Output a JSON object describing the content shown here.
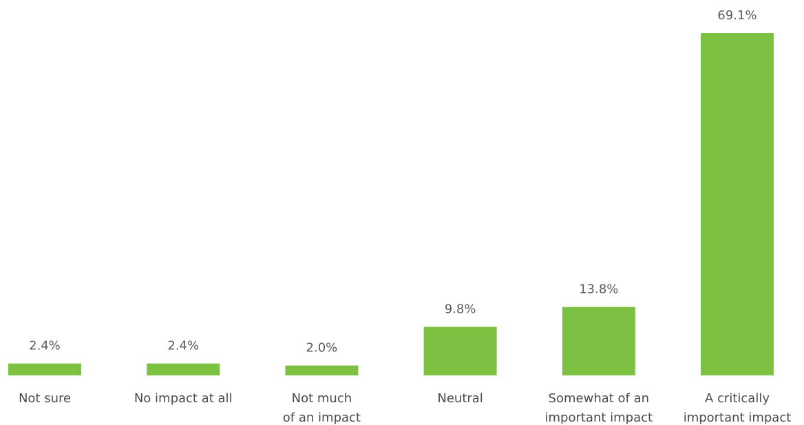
{
  "chart_data": {
    "type": "bar",
    "categories": [
      [
        "Not sure"
      ],
      [
        "No impact at all"
      ],
      [
        "Not much",
        "of an impact"
      ],
      [
        "Neutral"
      ],
      [
        "Somewhat of an",
        "important impact"
      ],
      [
        "A critically",
        "important impact"
      ]
    ],
    "values": [
      2.4,
      2.4,
      2.0,
      9.8,
      13.8,
      69.1
    ],
    "value_labels": [
      "2.4%",
      "2.4%",
      "2.0%",
      "9.8%",
      "13.8%",
      "69.1%"
    ],
    "title": "",
    "xlabel": "",
    "ylabel": "",
    "ylim": [
      0,
      69.1
    ],
    "grid": false,
    "legend": "none",
    "colors": {
      "bar": "#7dc142"
    }
  }
}
